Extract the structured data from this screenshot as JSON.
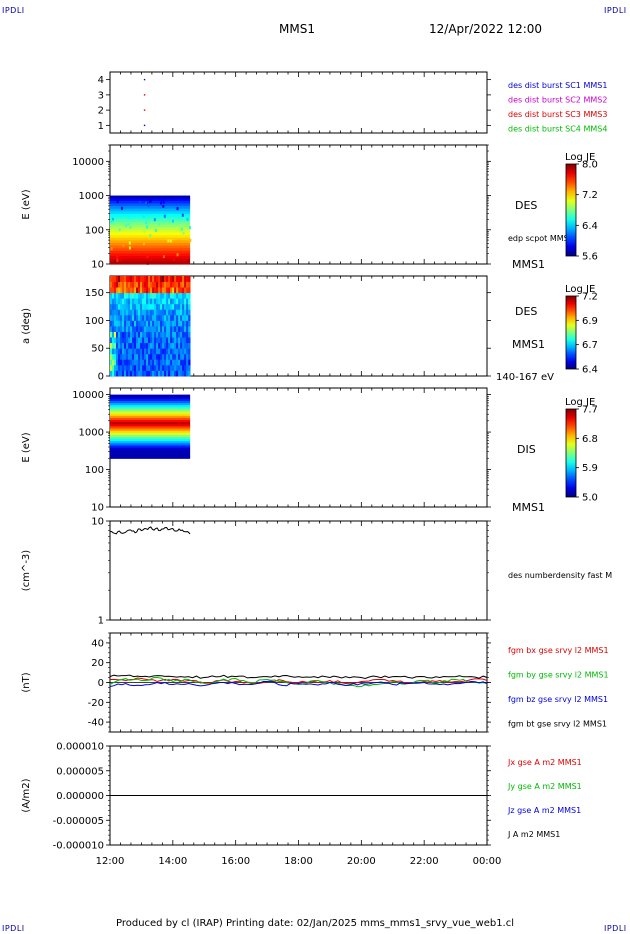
{
  "header": {
    "corner_label": "IPDLI",
    "mission": "MMS1",
    "datetime": "12/Apr/2022 12:00"
  },
  "footer": {
    "text": "Produced by cl (IRAP)   Printing date: 02/Jan/2025   mms_mms1_srvy_vue_web1.cl"
  },
  "colors": {
    "blue": "#0000dd",
    "magenta": "#cc00cc",
    "red": "#dd0000",
    "green": "#00bb00",
    "black": "#000000"
  },
  "chart_data": [
    {
      "id": "burst",
      "type": "scatter",
      "ylim": [
        0.5,
        4.5
      ],
      "yticks": [
        "1",
        "2",
        "3",
        "4"
      ],
      "series": [
        {
          "name": "des dist burst SC1 MMS1",
          "color": "#0000dd",
          "points": [
            [
              13.1,
              1
            ],
            [
              13.1,
              4
            ]
          ]
        },
        {
          "name": "des dist burst SC2 MMS2",
          "color": "#cc00cc",
          "points": []
        },
        {
          "name": "des dist burst SC3 MMS3",
          "color": "#dd0000",
          "points": [
            [
              13.1,
              2
            ],
            [
              13.1,
              3
            ]
          ]
        },
        {
          "name": "des dist burst SC4 MMS4",
          "color": "#00bb00",
          "points": []
        }
      ]
    },
    {
      "id": "des_energy",
      "type": "heatmap",
      "ylabel": "E (eV)",
      "yscale": "log",
      "ylim": [
        10,
        30000
      ],
      "yticks": [
        "10",
        "100",
        "1000",
        "10000"
      ],
      "x_coverage": [
        12.0,
        14.55
      ],
      "y_coverage": [
        10,
        1000
      ],
      "colorbar": {
        "title": "Log JE",
        "ticks": [
          "8.0",
          "7.2",
          "6.4",
          "5.6"
        ]
      },
      "right_label": "DES",
      "overlay": "edp scpot MMS1",
      "bottom_label": "MMS1"
    },
    {
      "id": "des_pitch",
      "type": "heatmap",
      "ylabel": "a (deg)",
      "ylim": [
        0,
        180
      ],
      "yticks": [
        "0",
        "50",
        "100",
        "150"
      ],
      "x_coverage": [
        12.0,
        14.55
      ],
      "colorbar": {
        "title": "Log JE",
        "ticks": [
          "7.2",
          "6.9",
          "6.7",
          "6.4"
        ]
      },
      "right_label": "DES",
      "mission_label": "MMS1",
      "energy_label": "140-167 eV"
    },
    {
      "id": "dis_energy",
      "type": "heatmap",
      "ylabel": "E (eV)",
      "yscale": "log",
      "ylim": [
        10,
        15000
      ],
      "yticks": [
        "10",
        "100",
        "1000",
        "10000"
      ],
      "x_coverage": [
        12.0,
        14.55
      ],
      "y_coverage": [
        200,
        10000
      ],
      "colorbar": {
        "title": "Log JE",
        "ticks": [
          "7.7",
          "6.8",
          "5.9",
          "5.0"
        ]
      },
      "right_label": "DIS",
      "bottom_label": "MMS1"
    },
    {
      "id": "density",
      "type": "line",
      "ylabel": "(cm^-3)",
      "yscale": "log",
      "ylim": [
        1,
        10
      ],
      "yticks": [
        "1",
        "10"
      ],
      "series": [
        {
          "name": "des numberdensity fast M",
          "color": "#000000",
          "x": [
            12.0,
            12.1,
            12.2,
            12.3,
            12.4,
            12.5,
            12.6,
            12.7,
            12.8,
            12.9,
            13.0,
            13.1,
            13.2,
            13.3,
            13.4,
            13.5,
            13.6,
            13.7,
            13.8,
            13.9,
            14.0,
            14.1,
            14.2,
            14.3,
            14.4,
            14.55
          ],
          "y": [
            7.8,
            7.6,
            7.4,
            7.9,
            7.5,
            7.7,
            8.1,
            7.9,
            7.6,
            8.3,
            8.0,
            8.4,
            8.2,
            8.7,
            8.1,
            8.5,
            8.0,
            8.3,
            8.6,
            8.2,
            8.4,
            7.9,
            8.3,
            8.1,
            7.8,
            7.4
          ]
        }
      ]
    },
    {
      "id": "bfield",
      "type": "line",
      "ylabel": "(nT)",
      "ylim": [
        -50,
        50
      ],
      "yticks": [
        "-40",
        "-20",
        "0",
        "20",
        "40"
      ],
      "series": [
        {
          "name": "fgm bx gse srvy l2 MMS1",
          "color": "#dd0000",
          "x": [
            12.0,
            12.5,
            13.0,
            13.5,
            14.0,
            14.5,
            15.0,
            15.5,
            16.0,
            16.5,
            17.0,
            17.5,
            18.0,
            18.5,
            19.0,
            19.5,
            20.0,
            20.5,
            21.0,
            21.5,
            22.0,
            22.5,
            23.0,
            23.5,
            24.0
          ],
          "y": [
            3,
            2,
            4,
            1,
            3,
            2,
            0,
            2,
            1,
            -1,
            1,
            2,
            0,
            1,
            2,
            -1,
            1,
            3,
            2,
            0,
            1,
            2,
            1,
            3,
            2
          ]
        },
        {
          "name": "fgm by gse srvy l2 MMS1",
          "color": "#00bb00",
          "x": [
            12.0,
            12.5,
            13.0,
            13.5,
            14.0,
            14.5,
            15.0,
            15.5,
            16.0,
            16.5,
            17.0,
            17.5,
            18.0,
            18.5,
            19.0,
            19.5,
            20.0,
            20.5,
            21.0,
            21.5,
            22.0,
            22.5,
            23.0,
            23.5,
            24.0
          ],
          "y": [
            -2,
            4,
            2,
            5,
            1,
            3,
            -1,
            2,
            4,
            0,
            3,
            1,
            -2,
            2,
            0,
            -3,
            -4,
            -2,
            1,
            -1,
            2,
            0,
            3,
            1,
            -1
          ]
        },
        {
          "name": "fgm bz gse srvy l2 MMS1",
          "color": "#0000dd",
          "x": [
            12.0,
            12.5,
            13.0,
            13.5,
            14.0,
            14.5,
            15.0,
            15.5,
            16.0,
            16.5,
            17.0,
            17.5,
            18.0,
            18.5,
            19.0,
            19.5,
            20.0,
            20.5,
            21.0,
            21.5,
            22.0,
            22.5,
            23.0,
            23.5,
            24.0
          ],
          "y": [
            -4,
            -1,
            -3,
            0,
            -2,
            -1,
            -3,
            0,
            -1,
            -2,
            1,
            -3,
            -1,
            -2,
            0,
            -3,
            -1,
            0,
            -2,
            -1,
            0,
            -2,
            -1,
            1,
            -1
          ]
        },
        {
          "name": "fgm bt gse srvy l2 MMS1",
          "color": "#000000",
          "x": [
            12.0,
            12.5,
            13.0,
            13.5,
            14.0,
            14.5,
            15.0,
            15.5,
            16.0,
            16.5,
            17.0,
            17.5,
            18.0,
            18.5,
            19.0,
            19.5,
            20.0,
            20.5,
            21.0,
            21.5,
            22.0,
            22.5,
            23.0,
            23.5,
            24.0
          ],
          "y": [
            6,
            7,
            6,
            7,
            6,
            6,
            5,
            6,
            6,
            5,
            6,
            7,
            6,
            6,
            5,
            6,
            5,
            6,
            6,
            5,
            6,
            5,
            6,
            6,
            5
          ]
        }
      ]
    },
    {
      "id": "current",
      "type": "line",
      "ylabel": "(A/m2)",
      "ylim": [
        -1e-05,
        1e-05
      ],
      "yticks": [
        "-0.000010",
        "-0.000005",
        "0.000000",
        "0.000005",
        "0.000010"
      ],
      "xticks": [
        "12:00",
        "14:00",
        "16:00",
        "18:00",
        "20:00",
        "22:00",
        "00:00"
      ],
      "xlim": [
        12,
        24
      ],
      "series": [
        {
          "name": "Jx gse A m2 MMS1",
          "color": "#dd0000",
          "x": [
            12,
            24
          ],
          "y": [
            0,
            0
          ]
        },
        {
          "name": "Jy gse A m2 MMS1",
          "color": "#00bb00",
          "x": [
            12,
            24
          ],
          "y": [
            0,
            0
          ]
        },
        {
          "name": "Jz gse A m2 MMS1",
          "color": "#0000dd",
          "x": [
            12,
            24
          ],
          "y": [
            0,
            0
          ]
        },
        {
          "name": "J A m2 MMS1",
          "color": "#000000",
          "x": [
            12,
            24
          ],
          "y": [
            0,
            0
          ]
        }
      ]
    }
  ]
}
